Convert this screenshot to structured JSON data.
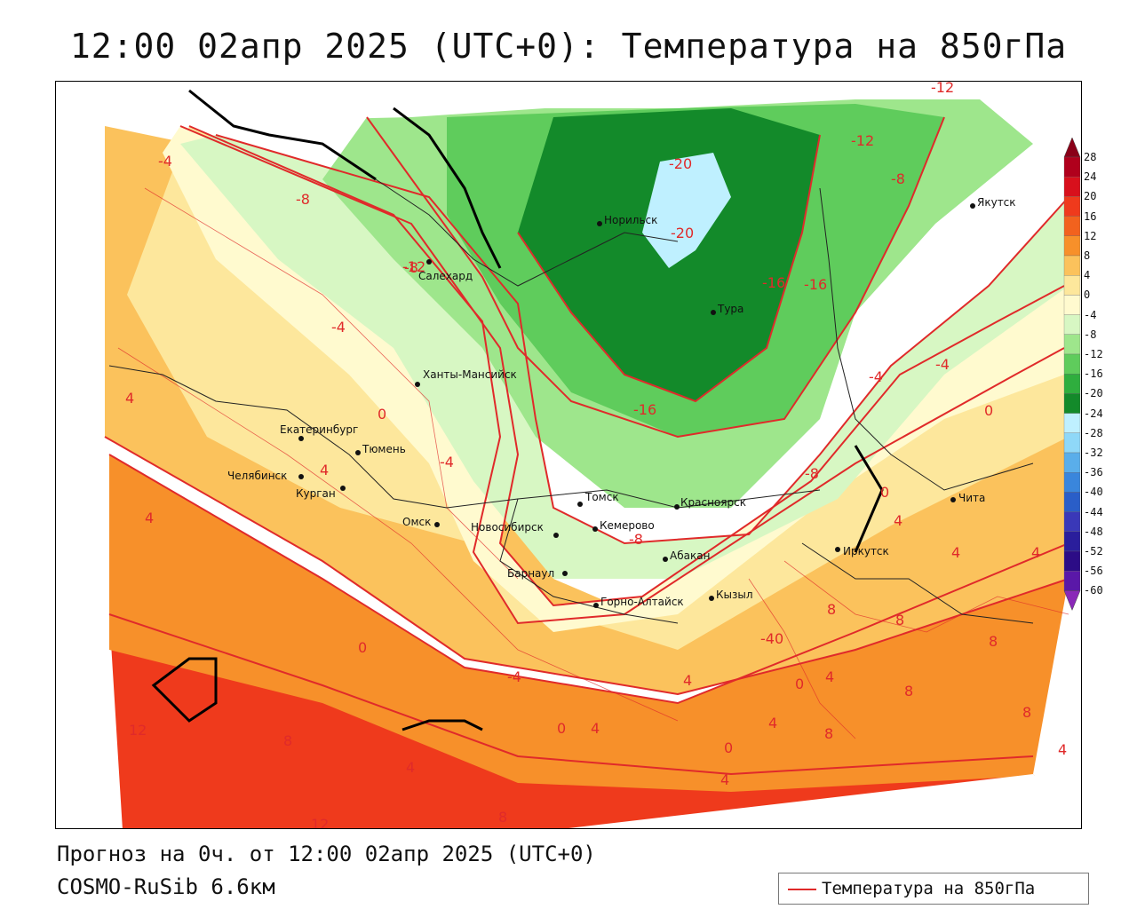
{
  "title": "12:00 02апр 2025 (UTC+0): Температура на 850гПа",
  "footer": {
    "forecast": "Прогноз на 0ч. от 12:00 02апр 2025 (UTC+0)",
    "model": "COSMO-RuSib 6.6км"
  },
  "legend": {
    "label": "Температура на 850гПа",
    "line_color": "#e02a2a"
  },
  "colorbar": {
    "levels": [
      "28",
      "24",
      "20",
      "16",
      "12",
      "8",
      "4",
      "0",
      "-4",
      "-8",
      "-12",
      "-16",
      "-20",
      "-24",
      "-28",
      "-32",
      "-36",
      "-40",
      "-44",
      "-48",
      "-52",
      "-56",
      "-60"
    ],
    "colors": [
      "#8a0018",
      "#b0001c",
      "#d8101c",
      "#ef3a1c",
      "#f2621e",
      "#f7902a",
      "#fbc25c",
      "#fde79c",
      "#fffacf",
      "#d7f7c3",
      "#9ee68c",
      "#5fcc5c",
      "#2fae3e",
      "#138a2a",
      "#bff0ff",
      "#8fd8f8",
      "#5aaeea",
      "#3a86dc",
      "#2a5ec8",
      "#3a38b8",
      "#2a1e9c",
      "#2c0c86",
      "#5a18a8",
      "#8a28b8"
    ]
  },
  "cities": [
    {
      "name": "Салехард"
    },
    {
      "name": "Норильск"
    },
    {
      "name": "Тура"
    },
    {
      "name": "Якутск"
    },
    {
      "name": "Ханты-Мансийск"
    },
    {
      "name": "Екатеринбург"
    },
    {
      "name": "Тюмень"
    },
    {
      "name": "Челябинск"
    },
    {
      "name": "Курган"
    },
    {
      "name": "Омск"
    },
    {
      "name": "Новосибирск"
    },
    {
      "name": "Томск"
    },
    {
      "name": "Кемерово"
    },
    {
      "name": "Красноярск"
    },
    {
      "name": "Абакан"
    },
    {
      "name": "Барнаул"
    },
    {
      "name": "Горно-Алтайск"
    },
    {
      "name": "Кызыл"
    },
    {
      "name": "Иркутск"
    },
    {
      "name": "Чита"
    }
  ],
  "isotherm_labels": [
    "-12",
    "-12",
    "-8",
    "-20",
    "-20",
    "-8",
    "-4",
    "-4",
    "-16",
    "-16",
    "-4",
    "-4",
    "0",
    "0",
    "-4",
    "-8",
    "-8",
    "-8",
    "4",
    "4",
    "4",
    "4",
    "0",
    "4",
    "4",
    "-40",
    "8",
    "8",
    "8",
    "8",
    "8",
    "0",
    "4",
    "4",
    "4",
    "4",
    "4",
    "12",
    "8",
    "4",
    "0",
    "4",
    "0",
    "8",
    "4",
    "12",
    "8",
    "-4",
    "0",
    "-12",
    "-16"
  ]
}
